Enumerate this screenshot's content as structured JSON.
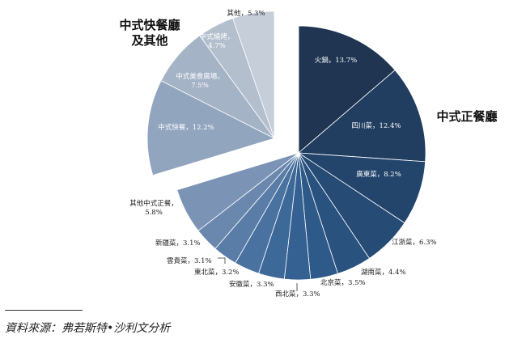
{
  "chart_data": {
    "type": "pie",
    "groups": [
      {
        "name": "中式正餐廳",
        "slices": [
          {
            "label": "火鍋",
            "value": 13.7,
            "display": "火鍋，13.7%",
            "color": "#1f3552"
          },
          {
            "label": "四川菜",
            "value": 12.4,
            "display": "四川菜，12.4%",
            "color": "#213d60"
          },
          {
            "label": "廣東菜",
            "value": 8.2,
            "display": "廣東菜，8.2%",
            "color": "#23446b"
          },
          {
            "label": "江浙菜",
            "value": 6.3,
            "display": "江浙菜，6.3%",
            "color": "#264b75"
          },
          {
            "label": "湖南菜",
            "value": 4.4,
            "display": "湖南菜，4.4%",
            "color": "#2a527f"
          },
          {
            "label": "北京菜",
            "value": 3.5,
            "display": "北京菜，3.5%",
            "color": "#2e5a89"
          },
          {
            "label": "西北菜",
            "value": 3.3,
            "display": "西北菜，3.3%",
            "color": "#346191"
          },
          {
            "label": "安徽菜",
            "value": 3.3,
            "display": "安徽菜，3.3%",
            "color": "#3c6998"
          },
          {
            "label": "東北菜",
            "value": 3.2,
            "display": "東北菜，3.2%",
            "color": "#4a72a0"
          },
          {
            "label": "雲貴菜",
            "value": 3.1,
            "display": "雲貴菜，3.1%",
            "color": "#5a7da7"
          },
          {
            "label": "新疆菜",
            "value": 3.1,
            "display": "新疆菜，3.1%",
            "color": "#6a88ae"
          },
          {
            "label": "其他中式正餐",
            "value": 5.8,
            "display": "其他中式正餐，5.8%",
            "color": "#7b94b6"
          }
        ]
      },
      {
        "name": "中式快餐廳及其他",
        "slices": [
          {
            "label": "中式快餐",
            "value": 12.2,
            "display": "中式快餐，12.2%",
            "color": "#91a5bf"
          },
          {
            "label": "中式美食廣場",
            "value": 7.5,
            "display": "中式美食廣場，7.5%",
            "color": "#a5b3c7"
          },
          {
            "label": "中式燒烤",
            "value": 4.7,
            "display": "中式燒烤，4.7%",
            "color": "#b4bfce"
          },
          {
            "label": "其他",
            "value": 5.3,
            "display": "其他，5.3%",
            "color": "#c6ced9"
          }
        ]
      }
    ]
  },
  "labels": {
    "group_main": "中式正餐廳",
    "group_other_line1": "中式快餐廳",
    "group_other_line2": "及其他"
  },
  "source": "資料來源：弗若斯特•沙利文分析"
}
